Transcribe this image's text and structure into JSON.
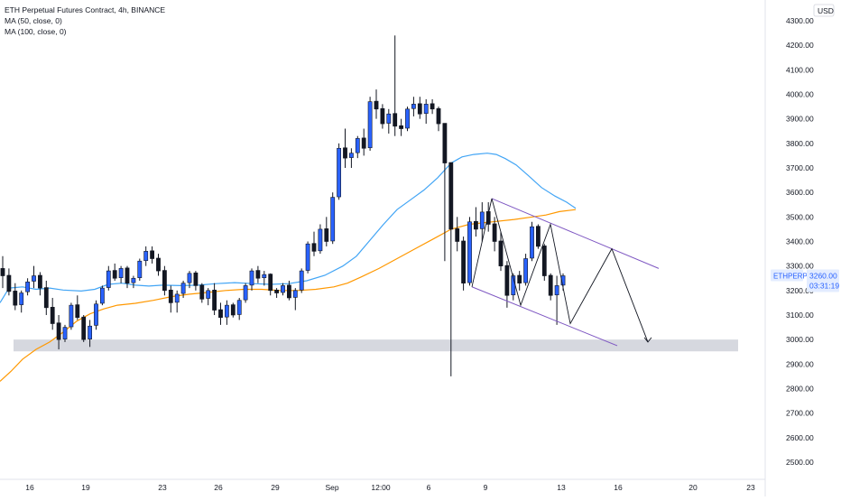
{
  "header": {
    "title": "ETH Perpetual Futures Contract, 4h, BINANCE",
    "indicators": [
      "MA (50, close, 0)",
      "MA (100, close, 0)"
    ]
  },
  "price_axis": {
    "currency": "USD",
    "ticks": [
      "2500.00",
      "2600.00",
      "2700.00",
      "2800.00",
      "2900.00",
      "3000.00",
      "3100.00",
      "3200.00",
      "3300.00",
      "3400.00",
      "3500.00",
      "3600.00",
      "3700.00",
      "3800.00",
      "3900.00",
      "4000.00",
      "4100.00",
      "4200.00",
      "4300.00"
    ],
    "symbol_label": "ETHPERP",
    "last_price": "3260.00",
    "countdown": "03:31:19"
  },
  "time_axis": {
    "ticks": [
      "16",
      "19",
      "23",
      "26",
      "29",
      "Sep",
      "12:00",
      "6",
      "9",
      "13",
      "16",
      "20",
      "23"
    ]
  },
  "colors": {
    "up": "#2962ff",
    "down": "#131722",
    "ma50": "#42a5f5",
    "ma100": "#ff9800",
    "channel": "#7e57c2",
    "zone": "#d1d4dc",
    "label_bg": "#2962ff"
  },
  "chart_data": {
    "type": "candlestick",
    "timeframe": "4h",
    "ylim": [
      2450,
      4350
    ],
    "support_zone": [
      2952,
      3000
    ],
    "ma50": [
      [
        0,
        3150
      ],
      [
        10,
        3210
      ],
      [
        25,
        3215
      ],
      [
        40,
        3205
      ],
      [
        55,
        3210
      ],
      [
        70,
        3202
      ],
      [
        90,
        3198
      ],
      [
        105,
        3205
      ],
      [
        120,
        3225
      ],
      [
        135,
        3230
      ],
      [
        150,
        3222
      ],
      [
        165,
        3218
      ],
      [
        180,
        3222
      ],
      [
        200,
        3220
      ],
      [
        220,
        3222
      ],
      [
        240,
        3228
      ],
      [
        260,
        3232
      ],
      [
        280,
        3228
      ],
      [
        300,
        3225
      ],
      [
        320,
        3228
      ],
      [
        340,
        3240
      ],
      [
        360,
        3262
      ],
      [
        380,
        3300
      ],
      [
        395,
        3340
      ],
      [
        410,
        3405
      ],
      [
        425,
        3470
      ],
      [
        440,
        3530
      ],
      [
        455,
        3570
      ],
      [
        470,
        3610
      ],
      [
        485,
        3660
      ],
      [
        500,
        3720
      ],
      [
        512,
        3745
      ],
      [
        525,
        3755
      ],
      [
        540,
        3760
      ],
      [
        550,
        3755
      ],
      [
        560,
        3738
      ],
      [
        572,
        3712
      ],
      [
        585,
        3670
      ],
      [
        600,
        3620
      ],
      [
        615,
        3585
      ],
      [
        628,
        3560
      ],
      [
        638,
        3535
      ]
    ],
    "ma100": [
      [
        0,
        2830
      ],
      [
        12,
        2870
      ],
      [
        25,
        2920
      ],
      [
        40,
        2960
      ],
      [
        55,
        2990
      ],
      [
        70,
        3030
      ],
      [
        85,
        3075
      ],
      [
        100,
        3105
      ],
      [
        115,
        3125
      ],
      [
        130,
        3140
      ],
      [
        150,
        3148
      ],
      [
        170,
        3160
      ],
      [
        190,
        3175
      ],
      [
        210,
        3185
      ],
      [
        230,
        3192
      ],
      [
        250,
        3200
      ],
      [
        270,
        3205
      ],
      [
        290,
        3205
      ],
      [
        310,
        3200
      ],
      [
        330,
        3200
      ],
      [
        350,
        3205
      ],
      [
        370,
        3215
      ],
      [
        385,
        3230
      ],
      [
        400,
        3255
      ],
      [
        420,
        3290
      ],
      [
        440,
        3330
      ],
      [
        460,
        3370
      ],
      [
        480,
        3410
      ],
      [
        500,
        3450
      ],
      [
        520,
        3470
      ],
      [
        545,
        3480
      ],
      [
        570,
        3490
      ],
      [
        590,
        3500
      ],
      [
        605,
        3508
      ],
      [
        620,
        3522
      ],
      [
        638,
        3530
      ]
    ],
    "candles": [
      [
        3290,
        3340,
        3210,
        3260
      ],
      [
        3262,
        3290,
        3180,
        3196
      ],
      [
        3198,
        3230,
        3120,
        3140
      ],
      [
        3142,
        3200,
        3110,
        3190
      ],
      [
        3195,
        3250,
        3180,
        3235
      ],
      [
        3238,
        3300,
        3210,
        3260
      ],
      [
        3262,
        3275,
        3180,
        3210
      ],
      [
        3212,
        3240,
        3100,
        3130
      ],
      [
        3132,
        3170,
        3040,
        3065
      ],
      [
        3068,
        3100,
        2960,
        3000
      ],
      [
        3002,
        3060,
        2990,
        3050
      ],
      [
        3052,
        3150,
        3040,
        3140
      ],
      [
        3142,
        3180,
        3080,
        3090
      ],
      [
        3092,
        3100,
        2990,
        3000
      ],
      [
        3002,
        3080,
        2970,
        3055
      ],
      [
        3058,
        3160,
        3040,
        3145
      ],
      [
        3148,
        3220,
        3140,
        3210
      ],
      [
        3212,
        3300,
        3200,
        3280
      ],
      [
        3282,
        3310,
        3240,
        3250
      ],
      [
        3252,
        3300,
        3230,
        3290
      ],
      [
        3292,
        3300,
        3210,
        3230
      ],
      [
        3232,
        3260,
        3210,
        3250
      ],
      [
        3252,
        3330,
        3240,
        3320
      ],
      [
        3322,
        3380,
        3300,
        3360
      ],
      [
        3362,
        3380,
        3310,
        3330
      ],
      [
        3332,
        3350,
        3260,
        3280
      ],
      [
        3282,
        3300,
        3180,
        3200
      ],
      [
        3202,
        3220,
        3110,
        3150
      ],
      [
        3152,
        3200,
        3110,
        3185
      ],
      [
        3188,
        3240,
        3170,
        3230
      ],
      [
        3232,
        3280,
        3210,
        3270
      ],
      [
        3272,
        3280,
        3200,
        3220
      ],
      [
        3222,
        3230,
        3150,
        3165
      ],
      [
        3168,
        3210,
        3140,
        3200
      ],
      [
        3202,
        3230,
        3100,
        3120
      ],
      [
        3122,
        3150,
        3060,
        3090
      ],
      [
        3092,
        3160,
        3060,
        3140
      ],
      [
        3142,
        3150,
        3090,
        3100
      ],
      [
        3102,
        3170,
        3080,
        3160
      ],
      [
        3162,
        3230,
        3150,
        3220
      ],
      [
        3222,
        3290,
        3200,
        3280
      ],
      [
        3282,
        3300,
        3230,
        3250
      ],
      [
        3252,
        3280,
        3220,
        3265
      ],
      [
        3267,
        3270,
        3180,
        3200
      ],
      [
        3202,
        3210,
        3170,
        3190
      ],
      [
        3192,
        3230,
        3180,
        3220
      ],
      [
        3222,
        3240,
        3160,
        3170
      ],
      [
        3172,
        3210,
        3120,
        3200
      ],
      [
        3202,
        3290,
        3190,
        3280
      ],
      [
        3282,
        3400,
        3270,
        3390
      ],
      [
        3392,
        3440,
        3340,
        3360
      ],
      [
        3362,
        3470,
        3350,
        3450
      ],
      [
        3452,
        3500,
        3380,
        3400
      ],
      [
        3402,
        3600,
        3390,
        3580
      ],
      [
        3582,
        3800,
        3570,
        3780
      ],
      [
        3782,
        3860,
        3700,
        3740
      ],
      [
        3742,
        3780,
        3700,
        3760
      ],
      [
        3762,
        3830,
        3740,
        3820
      ],
      [
        3822,
        3860,
        3750,
        3780
      ],
      [
        3782,
        3990,
        3770,
        3970
      ],
      [
        3972,
        4020,
        3900,
        3940
      ],
      [
        3942,
        3960,
        3860,
        3880
      ],
      [
        3882,
        3940,
        3840,
        3920
      ],
      [
        3922,
        4240,
        3830,
        3870
      ],
      [
        3872,
        3900,
        3830,
        3860
      ],
      [
        3862,
        3950,
        3850,
        3940
      ],
      [
        3942,
        3990,
        3910,
        3960
      ],
      [
        3962,
        3990,
        3900,
        3920
      ],
      [
        3922,
        3980,
        3880,
        3960
      ],
      [
        3962,
        3980,
        3920,
        3940
      ],
      [
        3942,
        3950,
        3850,
        3880
      ],
      [
        3882,
        3882,
        3320,
        3720
      ],
      [
        3722,
        3720,
        2850,
        3450
      ],
      [
        3452,
        3500,
        3360,
        3400
      ],
      [
        3402,
        3420,
        3200,
        3230
      ],
      [
        3232,
        3500,
        3220,
        3480
      ],
      [
        3482,
        3540,
        3420,
        3450
      ],
      [
        3452,
        3560,
        3400,
        3520
      ],
      [
        3522,
        3560,
        3440,
        3470
      ],
      [
        3472,
        3500,
        3360,
        3400
      ],
      [
        3402,
        3440,
        3280,
        3300
      ],
      [
        3302,
        3320,
        3130,
        3180
      ],
      [
        3182,
        3270,
        3160,
        3260
      ],
      [
        3262,
        3280,
        3200,
        3230
      ],
      [
        3232,
        3350,
        3220,
        3330
      ],
      [
        3332,
        3480,
        3320,
        3460
      ],
      [
        3462,
        3470,
        3370,
        3380
      ],
      [
        3382,
        3390,
        3240,
        3260
      ],
      [
        3262,
        3270,
        3160,
        3180
      ],
      [
        3182,
        3260,
        3060,
        3220
      ],
      [
        3222,
        3270,
        3200,
        3260
      ]
    ]
  }
}
